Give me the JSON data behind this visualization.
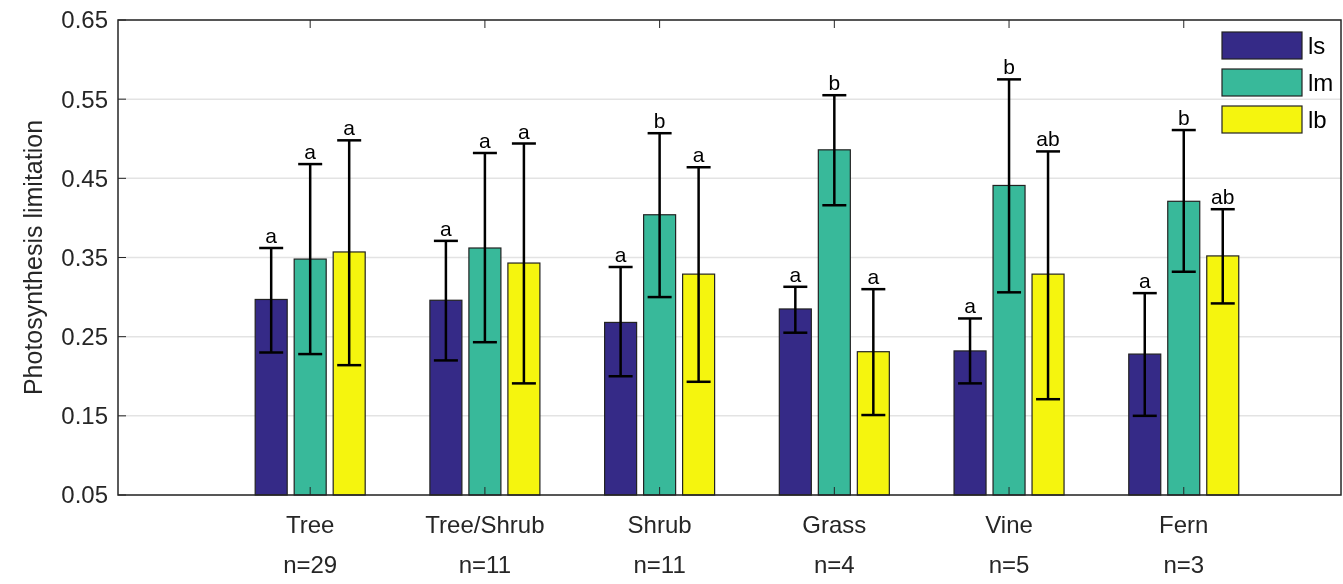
{
  "chart_data": {
    "type": "bar",
    "ylabel": "Photosynthesis limitation",
    "categories": [
      "Tree\nn=29",
      "Tree/Shrub\nn=11",
      "Shrub\nn=11",
      "Grass\nn=4",
      "Vine\nn=5",
      "Fern\nn=3"
    ],
    "series": [
      {
        "name": "ls",
        "color": "#352a87",
        "values": [
          0.297,
          0.296,
          0.268,
          0.285,
          0.232,
          0.228
        ],
        "errors": [
          [
            0.23,
            0.362
          ],
          [
            0.22,
            0.371
          ],
          [
            0.2,
            0.338
          ],
          [
            0.255,
            0.313
          ],
          [
            0.191,
            0.273
          ],
          [
            0.15,
            0.305
          ]
        ]
      },
      {
        "name": "lm",
        "color": "#38b99a",
        "values": [
          0.348,
          0.362,
          0.404,
          0.486,
          0.441,
          0.421
        ],
        "errors": [
          [
            0.228,
            0.468
          ],
          [
            0.243,
            0.482
          ],
          [
            0.3,
            0.507
          ],
          [
            0.416,
            0.555
          ],
          [
            0.306,
            0.575
          ],
          [
            0.332,
            0.511
          ]
        ]
      },
      {
        "name": "lb",
        "color": "#f5f50e",
        "values": [
          0.357,
          0.343,
          0.329,
          0.231,
          0.329,
          0.352
        ],
        "errors": [
          [
            0.214,
            0.498
          ],
          [
            0.191,
            0.494
          ],
          [
            0.193,
            0.464
          ],
          [
            0.151,
            0.31
          ],
          [
            0.171,
            0.484
          ],
          [
            0.292,
            0.411
          ]
        ]
      }
    ],
    "annotations": [
      "a",
      "a",
      "a",
      "a",
      "a",
      "a",
      "a",
      "a",
      "b",
      "b",
      "b",
      "b",
      "a",
      "a",
      "a",
      "a",
      "ab",
      "ab"
    ],
    "ylim": [
      0.05,
      0.65
    ],
    "yticks": [
      0.05,
      0.15,
      0.25,
      0.35,
      0.45,
      0.55,
      0.65
    ],
    "grid": "y",
    "legend": "top right"
  }
}
